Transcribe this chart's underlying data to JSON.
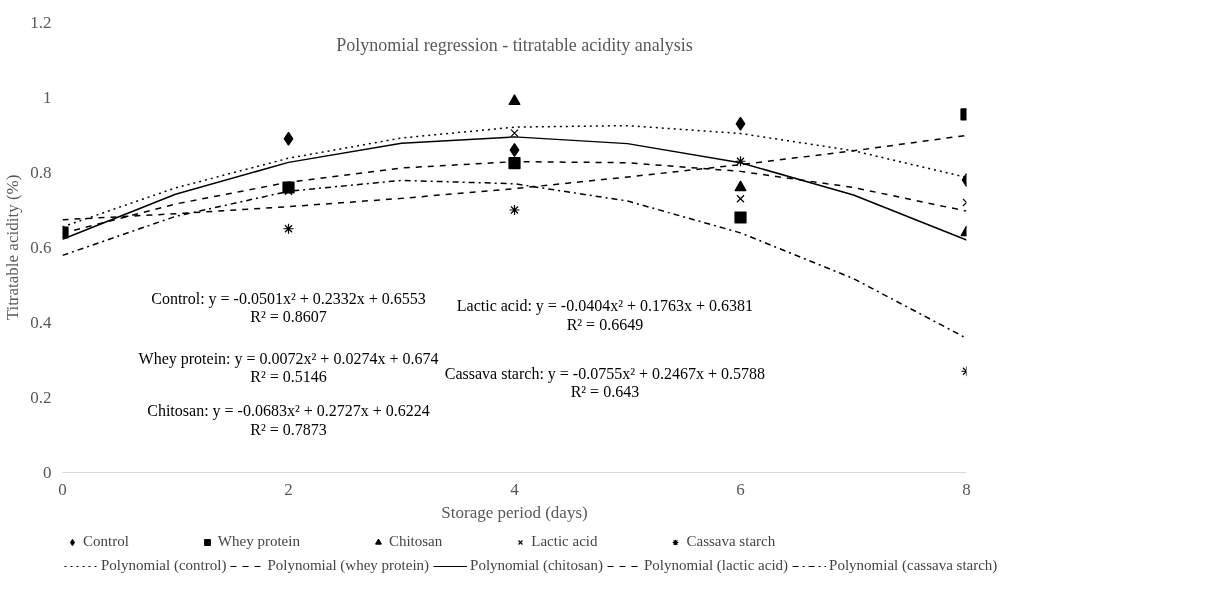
{
  "chart_data": {
    "type": "scatter",
    "title": "Polynomial regression - titratable acidity analysis",
    "xlabel": "Storage period (days)",
    "ylabel": "Titratable acidity (%)",
    "xlim": [
      0,
      8
    ],
    "xticks": [
      0,
      2,
      4,
      6,
      8
    ],
    "ylim": [
      0,
      1.2
    ],
    "yticks": [
      0,
      {
        "value": 0.2,
        "label": "0.2"
      },
      {
        "value": 0.4,
        "label": "0.4"
      },
      {
        "value": 0.6,
        "label": "0.6"
      },
      {
        "value": 0.8,
        "label": "0.8"
      },
      1,
      {
        "value": 1.2,
        "label": "1.2"
      }
    ],
    "grid": false,
    "legend": "bottom",
    "series": [
      {
        "name": "Control",
        "marker": "diamond",
        "color": "#000000",
        "x": [
          2,
          4,
          6,
          8
        ],
        "values": [
          0.89,
          0.86,
          0.93,
          0.78
        ]
      },
      {
        "name": "Whey protein",
        "marker": "square",
        "color": "#000000",
        "x": [
          0,
          2,
          4,
          6,
          8
        ],
        "values": [
          0.64,
          0.76,
          0.825,
          0.68,
          0.955
        ]
      },
      {
        "name": "Chitosan",
        "marker": "triangle",
        "color": "#000000",
        "x": [
          4,
          6,
          8
        ],
        "values": [
          0.99,
          0.76,
          0.64
        ]
      },
      {
        "name": "Lactic acid",
        "marker": "x",
        "color": "#000000",
        "x": [
          2,
          4,
          6,
          8
        ],
        "values": [
          0.75,
          0.905,
          0.73,
          0.72
        ]
      },
      {
        "name": "Cassava starch",
        "marker": "cross",
        "color": "#000000",
        "x": [
          2,
          4,
          6,
          8
        ],
        "values": [
          0.65,
          0.7,
          0.83,
          0.27
        ]
      },
      {
        "name": "Polynomial (control)",
        "type": "line",
        "line_style": "dotted",
        "color": "#000000",
        "x": [
          0,
          1,
          2,
          3,
          4,
          5,
          6,
          7,
          8
        ],
        "values": [
          0.655,
          0.759,
          0.838,
          0.892,
          0.921,
          0.925,
          0.904,
          0.858,
          0.787
        ]
      },
      {
        "name": "Polynomial (whey protein)",
        "type": "line",
        "line_style": "dashed",
        "color": "#000000",
        "x": [
          0,
          1,
          2,
          3,
          4,
          5,
          6,
          7,
          8
        ],
        "values": [
          0.674,
          0.69,
          0.709,
          0.731,
          0.757,
          0.788,
          0.821,
          0.858,
          0.899
        ]
      },
      {
        "name": "Polynomial (chitosan)",
        "type": "line",
        "line_style": "solid",
        "color": "#000000",
        "x": [
          0,
          1,
          2,
          3,
          4,
          5,
          6,
          7,
          8
        ],
        "values": [
          0.622,
          0.742,
          0.827,
          0.878,
          0.895,
          0.877,
          0.826,
          0.74,
          0.62
        ]
      },
      {
        "name": "Polynomial (lactic acid)",
        "type": "line",
        "line_style": "dashed",
        "color": "#000000",
        "x": [
          0,
          1,
          2,
          3,
          4,
          5,
          6,
          7,
          8
        ],
        "values": [
          0.638,
          0.716,
          0.774,
          0.812,
          0.829,
          0.826,
          0.803,
          0.76,
          0.697
        ]
      },
      {
        "name": "Polynomial (cassava starch)",
        "type": "line",
        "line_style": "dashdot",
        "color": "#000000",
        "x": [
          0,
          1,
          2,
          3,
          4,
          5,
          6,
          7,
          8
        ],
        "values": [
          0.579,
          0.683,
          0.75,
          0.779,
          0.77,
          0.724,
          0.639,
          0.517,
          0.358
        ]
      }
    ],
    "annotations": [
      "Control: y = -0.0501x² + 0.2332x + 0.6553\nR² = 0.8607",
      "Whey protein: y = 0.0072x² + 0.0274x + 0.674\nR² = 0.5146",
      "Chitosan: y = -0.0683x² + 0.2727x + 0.6224\nR² = 0.7873",
      "Lactic acid: y = -0.0404x² + 0.1763x + 0.6381\nR² = 0.6649",
      "Cassava starch: y = -0.0755x² + 0.2467x + 0.5788\nR² = 0.643"
    ]
  }
}
